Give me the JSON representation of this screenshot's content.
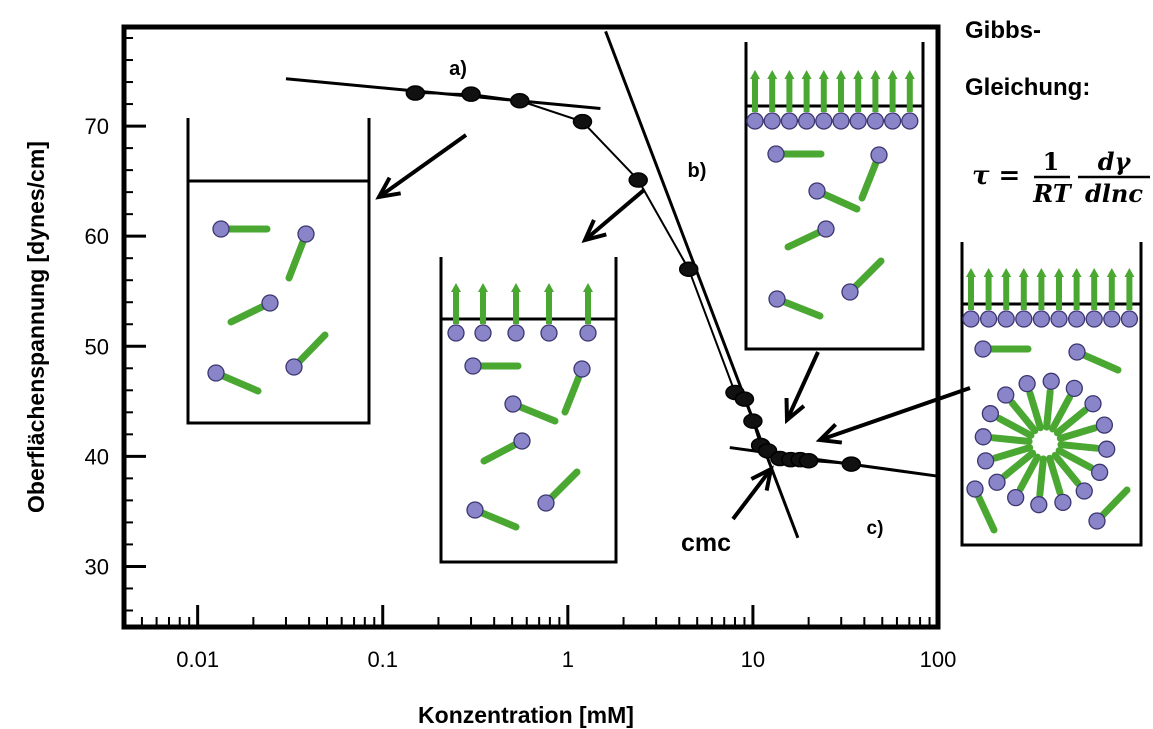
{
  "chart_data": {
    "type": "scatter",
    "x_scale": "log",
    "xlabel": "Konzentration [mM]",
    "ylabel": "Oberflächenspannung [dynes/cm]",
    "xlim": [
      0.004,
      100
    ],
    "ylim": [
      24.5,
      79
    ],
    "x_ticks": [
      0.01,
      0.1,
      1,
      10,
      100
    ],
    "x_tick_labels": [
      "0.01",
      "0.1",
      "1",
      "10",
      "100"
    ],
    "y_ticks": [
      30,
      40,
      50,
      60,
      70
    ],
    "y_tick_labels": [
      "30",
      "40",
      "50",
      "60",
      "70"
    ],
    "series": [
      {
        "x": [
          0.15,
          0.3,
          0.55,
          1.2,
          2.4,
          4.5,
          8,
          9,
          10,
          11,
          12,
          14,
          16,
          18,
          20,
          34
        ],
        "y": [
          73.0,
          72.9,
          72.3,
          70.4,
          65.1,
          57.0,
          45.8,
          45.2,
          43.2,
          41.0,
          40.5,
          39.8,
          39.7,
          39.7,
          39.6,
          39.3
        ]
      }
    ],
    "fit_lines": [
      {
        "x": [
          0.03,
          1.5
        ],
        "y": [
          74.3,
          71.6
        ]
      },
      {
        "x": [
          1.6,
          17.5
        ],
        "y": [
          78.6,
          32.6
        ]
      },
      {
        "x": [
          7.5,
          100
        ],
        "y": [
          40.8,
          38.2
        ]
      }
    ],
    "annotations": {
      "a": "a)",
      "b": "b)",
      "c": "c)",
      "cmc": "cmc"
    }
  },
  "formula": {
    "heading_line1": "Gibbs-",
    "heading_line2": "Gleichung:",
    "lhs": "τ =",
    "numerator1": "1",
    "denominator1": "RT",
    "numerator2": "dγ",
    "denominator2": "dlnc"
  },
  "colors": {
    "tail": "#4aa832",
    "head": "#8a84c8",
    "line": "#000000"
  }
}
